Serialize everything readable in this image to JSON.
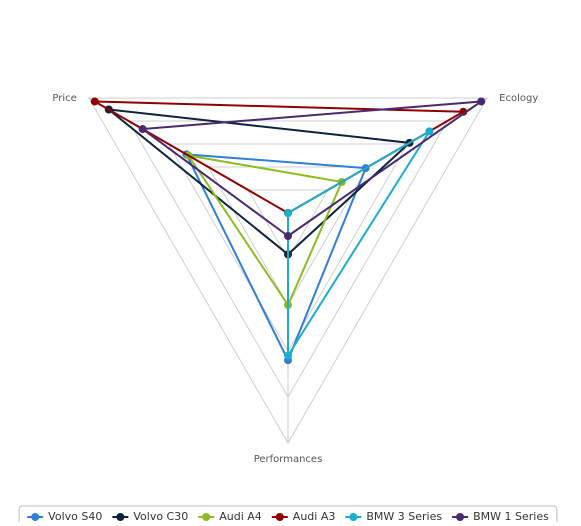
{
  "chart_data": {
    "type": "radar",
    "axes": [
      "Price",
      "Ecology",
      "Performances"
    ],
    "axis_max": 10,
    "grid_levels": [
      2,
      4,
      6,
      8,
      10
    ],
    "grid": true,
    "legend_position": "bottom",
    "series": [
      {
        "name": "Volvo S40",
        "color": "#2f7ed8",
        "values": [
          5.1,
          3.9,
          6.4
        ]
      },
      {
        "name": "Volvo C30",
        "color": "#0d233a",
        "values": [
          9.0,
          6.1,
          1.8
        ]
      },
      {
        "name": "Audi A4",
        "color": "#8bbc21",
        "values": [
          5.0,
          2.7,
          4.0
        ]
      },
      {
        "name": "Audi A3",
        "color": "#910000",
        "values": [
          9.7,
          8.8,
          0.0
        ]
      },
      {
        "name": "BMW 3 Series",
        "color": "#1aadce",
        "values": [
          0.0,
          7.1,
          6.2
        ]
      },
      {
        "name": "BMW 1 Series",
        "color": "#492970",
        "values": [
          7.3,
          9.7,
          1.0
        ]
      }
    ]
  }
}
